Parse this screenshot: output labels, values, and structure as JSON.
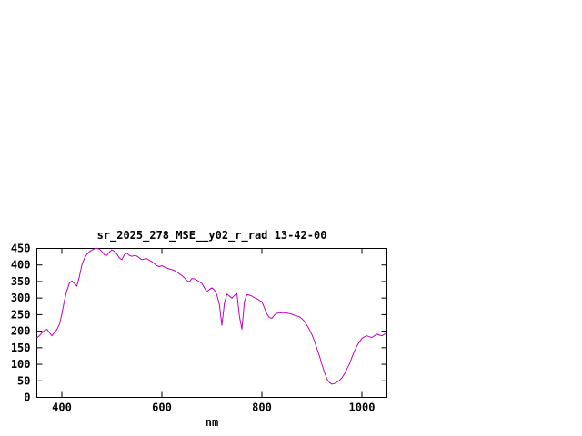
{
  "chart_data": {
    "type": "line",
    "title": "sr_2025_278_MSE__y02_r_rad 13-42-00",
    "xlabel": "nm",
    "ylabel": "",
    "xlim": [
      350,
      1050
    ],
    "ylim": [
      0,
      450
    ],
    "xticks": [
      400,
      600,
      800,
      1000
    ],
    "yticks": [
      0,
      50,
      100,
      150,
      200,
      250,
      300,
      350,
      400,
      450
    ],
    "grid": false,
    "legend_position": "none",
    "line_color": "#c000c0",
    "series_name": "sr_2025_278_MSE__y02_r_rad",
    "x_start": 350,
    "x_step": 5,
    "values": [
      180,
      186,
      195,
      202,
      206,
      196,
      186,
      196,
      205,
      220,
      252,
      292,
      322,
      345,
      352,
      344,
      336,
      365,
      400,
      420,
      432,
      440,
      445,
      449,
      450,
      448,
      441,
      431,
      429,
      439,
      446,
      441,
      433,
      421,
      416,
      431,
      436,
      429,
      426,
      429,
      427,
      421,
      416,
      418,
      419,
      414,
      410,
      404,
      398,
      395,
      398,
      394,
      391,
      388,
      386,
      383,
      379,
      373,
      368,
      361,
      353,
      349,
      359,
      358,
      354,
      349,
      344,
      331,
      319,
      326,
      331,
      324,
      310,
      280,
      218,
      285,
      312,
      306,
      300,
      308,
      314,
      245,
      206,
      290,
      310,
      309,
      306,
      301,
      298,
      293,
      289,
      270,
      252,
      241,
      239,
      249,
      254,
      255,
      256,
      256,
      255,
      253,
      251,
      248,
      246,
      243,
      238,
      230,
      218,
      205,
      190,
      170,
      148,
      125,
      100,
      76,
      56,
      45,
      40,
      42,
      46,
      51,
      59,
      71,
      86,
      101,
      121,
      140,
      155,
      168,
      178,
      183,
      186,
      183,
      181,
      186,
      191,
      188,
      186,
      191,
      193
    ]
  }
}
